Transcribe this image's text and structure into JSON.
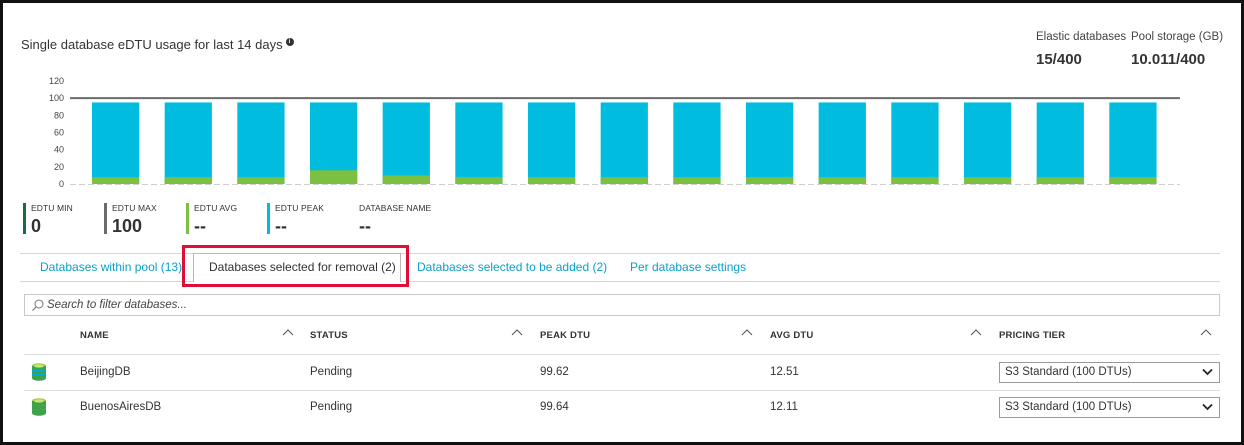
{
  "chart_title": "Single database eDTU usage for last 14 days",
  "stats": {
    "elastic": {
      "label": "Elastic databases",
      "value": "15/400"
    },
    "storage": {
      "label": "Pool storage (GB)",
      "value": "10.011/400"
    }
  },
  "chart_data": {
    "type": "bar",
    "y_ticks": [
      0,
      20,
      40,
      60,
      80,
      100,
      120
    ],
    "ylim": [
      0,
      120
    ],
    "max_line": 100,
    "grid": false,
    "bars": [
      {
        "avg": 8,
        "peak": 95
      },
      {
        "avg": 8,
        "peak": 95
      },
      {
        "avg": 8,
        "peak": 95
      },
      {
        "avg": 16,
        "peak": 95
      },
      {
        "avg": 10,
        "peak": 95
      },
      {
        "avg": 8,
        "peak": 95
      },
      {
        "avg": 8,
        "peak": 95
      },
      {
        "avg": 8,
        "peak": 95
      },
      {
        "avg": 8,
        "peak": 95
      },
      {
        "avg": 8,
        "peak": 95
      },
      {
        "avg": 8,
        "peak": 95
      },
      {
        "avg": 8,
        "peak": 95
      },
      {
        "avg": 8,
        "peak": 95
      },
      {
        "avg": 8,
        "peak": 95
      },
      {
        "avg": 8,
        "peak": 95
      }
    ],
    "colors": {
      "peak": "#00bcdf",
      "avg": "#7cc043",
      "max_line": "#6b6b6b",
      "axis": "#cfcfcf"
    }
  },
  "legend": [
    {
      "label": "EDTU MIN",
      "value": "0",
      "color": "#1b6b46"
    },
    {
      "label": "EDTU MAX",
      "value": "100",
      "color": "#6b6b6b"
    },
    {
      "label": "EDTU AVG",
      "value": "--",
      "color": "#7cc043"
    },
    {
      "label": "EDTU PEAK",
      "value": "--",
      "color": "#00bcdf"
    },
    {
      "label": "DATABASE NAME",
      "value": "--",
      "color": ""
    }
  ],
  "tabs": [
    {
      "label": "Databases within pool (13)"
    },
    {
      "label": "Databases selected for removal (2)"
    },
    {
      "label": "Databases selected to be added (2)"
    },
    {
      "label": "Per database settings"
    }
  ],
  "search": {
    "placeholder": "Search to filter databases..."
  },
  "table": {
    "columns": [
      "NAME",
      "STATUS",
      "PEAK DTU",
      "AVG DTU",
      "PRICING TIER"
    ],
    "rows": [
      {
        "name": "BeijingDB",
        "status": "Pending",
        "peak": "99.62",
        "avg": "12.51",
        "tier": "S3 Standard (100 DTUs)"
      },
      {
        "name": "BuenosAiresDB",
        "status": "Pending",
        "peak": "99.64",
        "avg": "12.11",
        "tier": "S3 Standard (100 DTUs)"
      }
    ]
  }
}
